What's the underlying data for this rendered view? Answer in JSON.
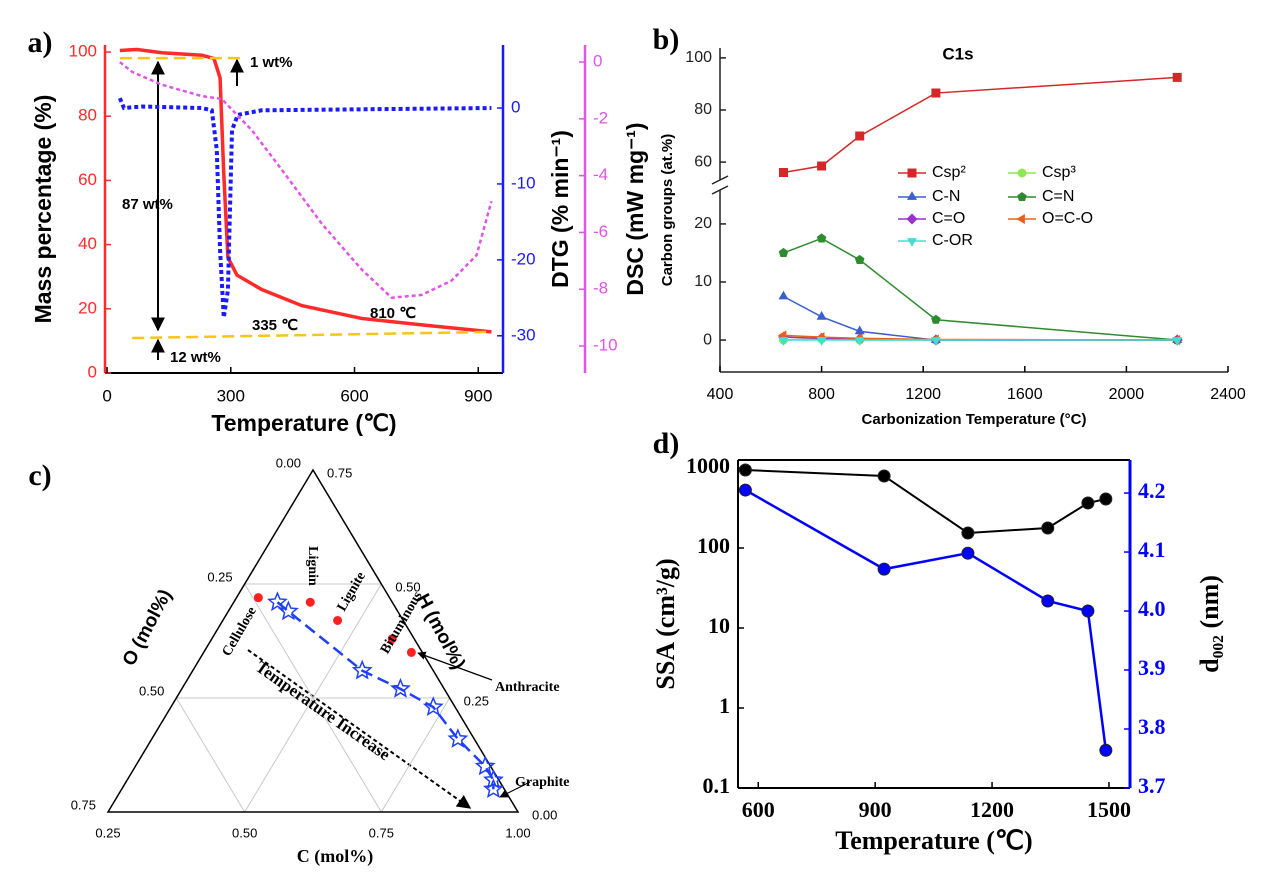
{
  "chart_data": [
    {
      "type": "line",
      "panel_label": "a)",
      "xlabel": "Temperature (℃)",
      "ylabel": "Mass percentage (%)",
      "y2label": "DTG (% min⁻¹)",
      "y3label": "DSC (mW mg⁻¹)",
      "xlim": [
        -5,
        960
      ],
      "xticks": [
        0,
        300,
        600,
        900
      ],
      "ylim": [
        0,
        102.2
      ],
      "yticks": [
        0,
        20,
        40,
        60,
        80,
        100
      ],
      "y2lim": [
        -34.9,
        8.3
      ],
      "y2ticks": [
        0,
        -10,
        -20,
        -30
      ],
      "y3lim": [
        -10.95,
        0.6
      ],
      "y3ticks": [
        0,
        -2,
        -4,
        -6,
        -8,
        -10
      ],
      "series": [
        {
          "color": "#ff2a2a",
          "style": "solid",
          "x": [
            31,
            73,
            133,
            230,
            259,
            274,
            283,
            293,
            315,
            375,
            472,
            617,
            763,
            932
          ],
          "values": [
            100.5,
            100.8,
            99.8,
            99,
            98,
            92,
            62,
            36,
            30.5,
            26,
            21,
            17,
            15,
            12.8
          ]
        },
        {
          "color": "#1a1aff",
          "style": "dotted",
          "axis": "y2",
          "x": [
            31,
            41,
            85,
            230,
            254,
            266,
            274,
            283,
            293,
            303,
            317,
            375,
            932
          ],
          "values": [
            1.3,
            0,
            0.2,
            0,
            -0.3,
            -5.5,
            -18.7,
            -27.6,
            -24,
            -2.9,
            -0.9,
            -0.3,
            0
          ]
        },
        {
          "color": "#e055e8",
          "style": "dotted",
          "axis": "y3",
          "x": [
            31,
            61,
            133,
            230,
            278,
            351,
            424,
            521,
            617,
            690,
            763,
            835,
            896,
            932
          ],
          "values": [
            0,
            -0.35,
            -0.8,
            -1.2,
            -1.3,
            -2.4,
            -3.8,
            -5.7,
            -7.3,
            -8.3,
            -8.2,
            -7.7,
            -6.8,
            -4.9
          ]
        },
        {
          "color": "#f5c518",
          "style": "dashed",
          "x": [
            31,
            327
          ],
          "values": [
            98.1,
            98.1
          ]
        },
        {
          "color": "#f5c518",
          "style": "dashed",
          "x": [
            61,
            932
          ],
          "values": [
            10.9,
            12.8
          ]
        }
      ],
      "annotations": [
        "1 wt%",
        "87 wt%",
        "12 wt%",
        "335 ℃",
        "810 ℃"
      ]
    },
    {
      "type": "line",
      "panel_label": "b)",
      "title": "C1s",
      "xlabel": "Carbonization Temperature (°C)",
      "ylabel": "Carbon groups (at.%)",
      "xlim": [
        400,
        2400
      ],
      "xticks": [
        400,
        800,
        1200,
        1600,
        2000,
        2400
      ],
      "ylim": [
        -5.5,
        103.8
      ],
      "ybreak": [
        26.7,
        51.2
      ],
      "yticks": [
        0,
        10,
        20,
        60,
        80,
        100
      ],
      "legend": true,
      "x": [
        650,
        800,
        950,
        1250,
        2200
      ],
      "series": [
        {
          "name": "Csp²",
          "color": "#d62728",
          "style": "solid",
          "marker": "square",
          "values": [
            56,
            58.5,
            70,
            86.5,
            92.5
          ]
        },
        {
          "name": "Csp³",
          "color": "#8ee84e",
          "style": "solid",
          "marker": "circle",
          "values": [
            0,
            0.2,
            0,
            0,
            0
          ]
        },
        {
          "name": "C-N",
          "color": "#3a5fcd",
          "style": "solid",
          "marker": "triangle",
          "values": [
            7.5,
            4,
            1.5,
            0,
            0
          ]
        },
        {
          "name": "C=N",
          "color": "#2e8b2e",
          "style": "solid",
          "marker": "pentagon",
          "values": [
            15,
            17.5,
            13.8,
            3.5,
            0
          ]
        },
        {
          "name": "C=O",
          "color": "#9932cc",
          "style": "solid",
          "marker": "diamond",
          "values": [
            0.5,
            0.3,
            0.2,
            0,
            0
          ]
        },
        {
          "name": "O=C-O",
          "color": "#e8601c",
          "style": "solid",
          "marker": "trileft",
          "values": [
            0.8,
            0.5,
            0.3,
            0.1,
            0
          ]
        },
        {
          "name": "C-OR",
          "color": "#40e0d0",
          "style": "solid",
          "marker": "tridown",
          "values": [
            0,
            0,
            0,
            0,
            0
          ]
        }
      ]
    },
    {
      "type": "ternary",
      "panel_label": "c)",
      "clabel": "C (mol%)",
      "olabel": "O (mol%)",
      "hlabel": "H (mol%)",
      "clim": [
        0.25,
        1
      ],
      "olim": [
        0,
        0.75
      ],
      "hlim": [
        0,
        0.75
      ],
      "grid": true,
      "cticks": [
        {
          "value": 0.25,
          "label": "0.25"
        },
        {
          "value": 0.5,
          "label": "0.50"
        },
        {
          "value": 0.75,
          "label": "0.75"
        },
        {
          "value": 1,
          "label": "1.00"
        }
      ],
      "oticks": [
        {
          "value": 0,
          "label": "0.00"
        },
        {
          "value": 0.25,
          "label": "0.25"
        },
        {
          "value": 0.5,
          "label": "0.50"
        },
        {
          "value": 0.75,
          "label": "0.75"
        }
      ],
      "hticks": [
        {
          "value": 0,
          "label": "0.00"
        },
        {
          "value": 0.25,
          "label": "0.25"
        },
        {
          "value": 0.5,
          "label": "0.50"
        },
        {
          "value": 0.75,
          "label": "0.75"
        }
      ],
      "series": [
        {
          "color": "#ff2020",
          "marker": "circle",
          "labels": [
            "Cellulose",
            "Lignin",
            "Lignite",
            "Bituminous",
            "Anthracite"
          ],
          "c": [
            0.29,
            0.39,
            0.46,
            0.58,
            0.63
          ],
          "h": [
            0.47,
            0.46,
            0.42,
            0.38,
            0.35
          ],
          "o": [
            0.24,
            0.15,
            0.12,
            0.04,
            0.02
          ]
        },
        {
          "color": "#1f3fff",
          "marker": "star",
          "style": "dashed",
          "c": [
            0.33,
            0.36,
            0.56,
            0.65,
            0.73,
            0.81,
            0.89,
            0.92,
            0.93
          ],
          "h": [
            0.46,
            0.44,
            0.31,
            0.27,
            0.23,
            0.16,
            0.1,
            0.07,
            0.05
          ],
          "o": [
            0.21,
            0.2,
            0.13,
            0.08,
            0.04,
            0.03,
            0.01,
            0.01,
            0.02
          ]
        }
      ],
      "annotations": [
        "Temperature Increase",
        "Graphite"
      ]
    },
    {
      "type": "line",
      "panel_label": "d)",
      "xlabel": "Temperature (℃)",
      "ylabel": "SSA (cm³/g)",
      "y2label": "d₀₀₂ (nm)",
      "xlim": [
        548,
        1554
      ],
      "xticks": [
        600,
        900,
        1200,
        1500
      ],
      "ylog": true,
      "ylim": [
        0.1,
        1259
      ],
      "yticks": [
        0.1,
        1,
        10,
        100,
        1000
      ],
      "y2lim": [
        3.7,
        4.256
      ],
      "y2ticks": [
        3.7,
        3.8,
        3.9,
        {
          "value": 4,
          "label": "4.0"
        },
        4.1,
        4.2
      ],
      "x": [
        567,
        923,
        1138,
        1343,
        1446,
        1492
      ],
      "series": [
        {
          "color": "#000000",
          "style": "solid",
          "marker": "circle",
          "values": [
            944,
            794,
            154,
            178,
            365,
            410
          ]
        },
        {
          "color": "#0000ff",
          "style": "solid",
          "marker": "circle",
          "axis": "y2",
          "values": [
            4.205,
            4.071,
            4.098,
            4.017,
            4.0,
            3.764
          ]
        }
      ]
    }
  ]
}
